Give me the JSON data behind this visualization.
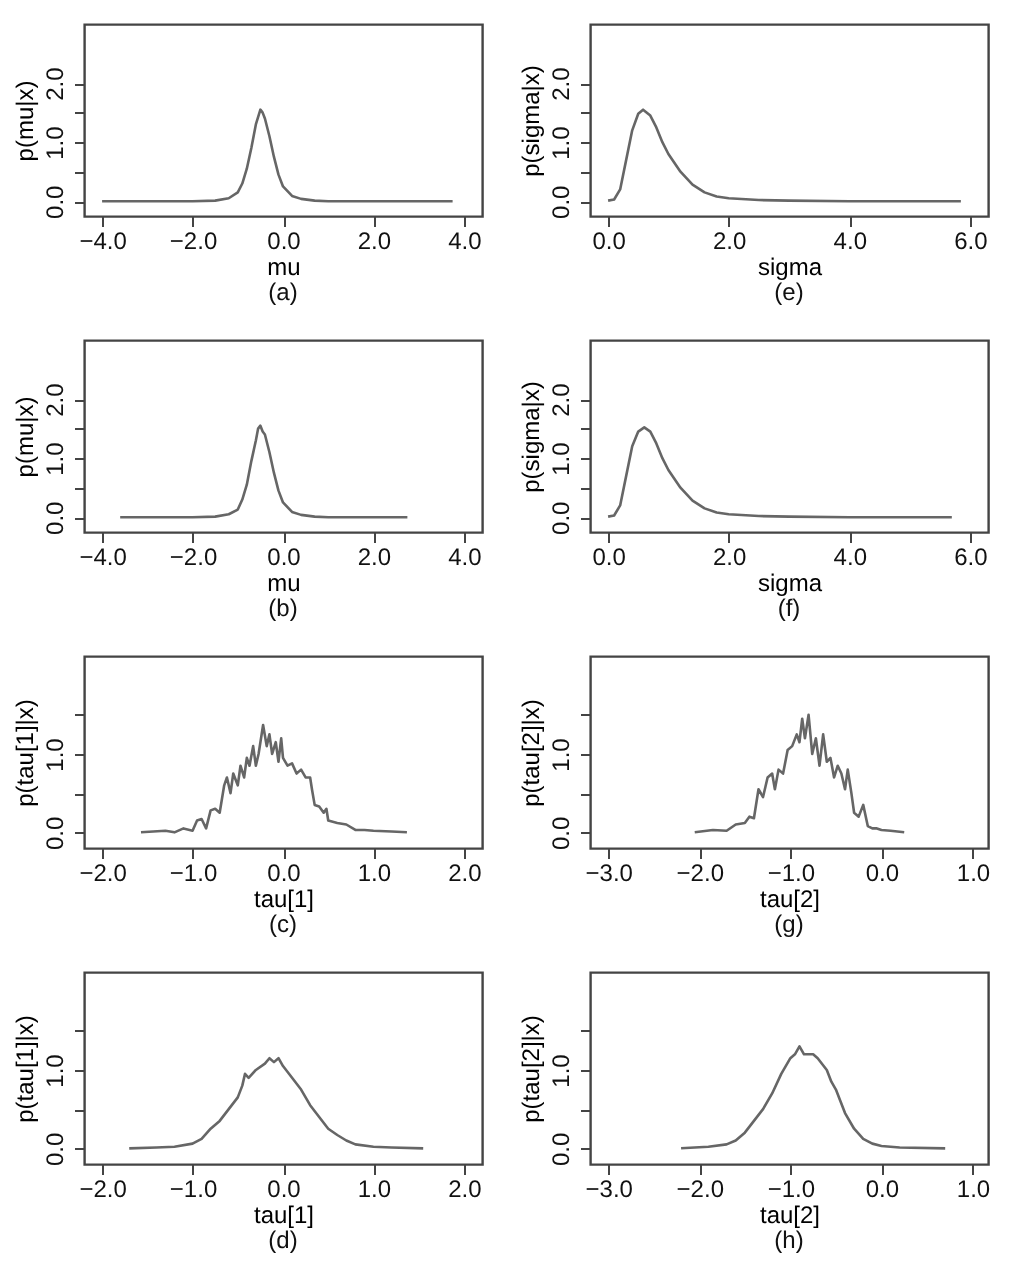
{
  "chart_data": [
    {
      "type": "line",
      "xlabel": "mu",
      "ylabel": "p(mu|x)",
      "annotations": [
        "(a)"
      ],
      "xlim": [
        -4.4,
        4.4
      ],
      "ylim": [
        -0.25,
        3.0
      ],
      "xticks": [
        {
          "value": -4,
          "label": "−4.0"
        },
        {
          "value": -2,
          "label": "−2.0"
        },
        {
          "value": 0,
          "label": "0.0"
        },
        {
          "value": 2,
          "label": "2.0"
        },
        {
          "value": 4,
          "label": "4.0"
        }
      ],
      "yticks": [
        {
          "value": 0,
          "label": "0.0"
        },
        {
          "value": 0.5,
          "label": null
        },
        {
          "value": 1,
          "label": "1.0"
        },
        {
          "value": 1.5,
          "label": null
        },
        {
          "value": 2,
          "label": "2.0"
        }
      ],
      "x": [
        -4.0,
        -3.0,
        -2.0,
        -1.5,
        -1.2,
        -1.0,
        -0.9,
        -0.8,
        -0.7,
        -0.6,
        -0.5,
        -0.45,
        -0.4,
        -0.3,
        -0.2,
        -0.1,
        0.0,
        0.2,
        0.4,
        0.7,
        1.0,
        2.0,
        3.75
      ],
      "series": [
        {
          "color": "#666666",
          "values": [
            0,
            0,
            0,
            0.01,
            0.05,
            0.15,
            0.3,
            0.55,
            0.9,
            1.3,
            1.55,
            1.5,
            1.4,
            1.1,
            0.75,
            0.45,
            0.25,
            0.09,
            0.04,
            0.01,
            0,
            0,
            0
          ]
        }
      ]
    },
    {
      "type": "line",
      "xlabel": "sigma",
      "ylabel": "p(sigma|x)",
      "annotations": [
        "(e)"
      ],
      "xlim": [
        -0.3,
        6.3
      ],
      "ylim": [
        -0.25,
        3.0
      ],
      "xticks": [
        {
          "value": 0,
          "label": "0.0"
        },
        {
          "value": 2,
          "label": "2.0"
        },
        {
          "value": 4,
          "label": "4.0"
        },
        {
          "value": 6,
          "label": "6.0"
        }
      ],
      "yticks": [
        {
          "value": 0,
          "label": "0.0"
        },
        {
          "value": 0.5,
          "label": null
        },
        {
          "value": 1,
          "label": "1.0"
        },
        {
          "value": 1.5,
          "label": null
        },
        {
          "value": 2,
          "label": "2.0"
        }
      ],
      "x": [
        0,
        0.1,
        0.2,
        0.3,
        0.4,
        0.5,
        0.58,
        0.7,
        0.8,
        0.9,
        1.0,
        1.2,
        1.4,
        1.6,
        1.8,
        2.0,
        2.5,
        3.0,
        4.0,
        5.85
      ],
      "series": [
        {
          "color": "#666666",
          "values": [
            0.01,
            0.03,
            0.2,
            0.7,
            1.2,
            1.48,
            1.55,
            1.45,
            1.25,
            1.0,
            0.8,
            0.5,
            0.28,
            0.15,
            0.08,
            0.05,
            0.02,
            0.01,
            0,
            0
          ]
        }
      ]
    },
    {
      "type": "line",
      "xlabel": "mu",
      "ylabel": "p(mu|x)",
      "annotations": [
        "(b)"
      ],
      "xlim": [
        -4.4,
        4.4
      ],
      "ylim": [
        -0.25,
        3.0
      ],
      "xticks": [
        {
          "value": -4,
          "label": "−4.0"
        },
        {
          "value": -2,
          "label": "−2.0"
        },
        {
          "value": 0,
          "label": "0.0"
        },
        {
          "value": 2,
          "label": "2.0"
        },
        {
          "value": 4,
          "label": "4.0"
        }
      ],
      "yticks": [
        {
          "value": 0,
          "label": "0.0"
        },
        {
          "value": 0.5,
          "label": null
        },
        {
          "value": 1,
          "label": "1.0"
        },
        {
          "value": 1.5,
          "label": null
        },
        {
          "value": 2,
          "label": "2.0"
        }
      ],
      "x": [
        -3.6,
        -2.0,
        -1.5,
        -1.2,
        -1.0,
        -0.9,
        -0.8,
        -0.7,
        -0.6,
        -0.55,
        -0.5,
        -0.45,
        -0.4,
        -0.3,
        -0.2,
        -0.1,
        0.0,
        0.2,
        0.4,
        0.7,
        1.0,
        2.0,
        2.75
      ],
      "series": [
        {
          "color": "#666666",
          "values": [
            0,
            0,
            0.01,
            0.05,
            0.13,
            0.3,
            0.55,
            0.95,
            1.3,
            1.5,
            1.55,
            1.45,
            1.4,
            1.1,
            0.75,
            0.45,
            0.25,
            0.09,
            0.04,
            0.01,
            0,
            0,
            0
          ]
        }
      ]
    },
    {
      "type": "line",
      "xlabel": "sigma",
      "ylabel": "p(sigma|x)",
      "annotations": [
        "(f)"
      ],
      "xlim": [
        -0.3,
        6.3
      ],
      "ylim": [
        -0.25,
        3.0
      ],
      "xticks": [
        {
          "value": 0,
          "label": "0.0"
        },
        {
          "value": 2,
          "label": "2.0"
        },
        {
          "value": 4,
          "label": "4.0"
        },
        {
          "value": 6,
          "label": "6.0"
        }
      ],
      "yticks": [
        {
          "value": 0,
          "label": "0.0"
        },
        {
          "value": 0.5,
          "label": null
        },
        {
          "value": 1,
          "label": "1.0"
        },
        {
          "value": 1.5,
          "label": null
        },
        {
          "value": 2,
          "label": "2.0"
        }
      ],
      "x": [
        0,
        0.1,
        0.2,
        0.3,
        0.4,
        0.5,
        0.6,
        0.7,
        0.8,
        0.9,
        1.0,
        1.2,
        1.4,
        1.6,
        1.8,
        2.0,
        2.5,
        3.0,
        4.0,
        5.7
      ],
      "series": [
        {
          "color": "#666666",
          "values": [
            0.01,
            0.03,
            0.2,
            0.7,
            1.2,
            1.45,
            1.52,
            1.45,
            1.25,
            1.0,
            0.8,
            0.5,
            0.28,
            0.15,
            0.08,
            0.05,
            0.02,
            0.01,
            0,
            0
          ]
        }
      ]
    },
    {
      "type": "line",
      "xlabel": "tau[1]",
      "ylabel": "p(tau[1]|x)",
      "annotations": [
        "(c)"
      ],
      "xlim": [
        -2.2,
        2.2
      ],
      "ylim": [
        -0.2,
        2.25
      ],
      "xticks": [
        {
          "value": -2,
          "label": "−2.0"
        },
        {
          "value": -1,
          "label": "−1.0"
        },
        {
          "value": 0,
          "label": "0.0"
        },
        {
          "value": 1,
          "label": "1.0"
        },
        {
          "value": 2,
          "label": "2.0"
        }
      ],
      "yticks": [
        {
          "value": 0,
          "label": "0.0"
        },
        {
          "value": 0.5,
          "label": null
        },
        {
          "value": 1,
          "label": "1.0"
        },
        {
          "value": 1.5,
          "label": null
        }
      ],
      "x": [
        -1.57,
        -1.3,
        -1.2,
        -1.1,
        -1.0,
        -0.95,
        -0.9,
        -0.85,
        -0.8,
        -0.75,
        -0.7,
        -0.65,
        -0.62,
        -0.58,
        -0.55,
        -0.5,
        -0.47,
        -0.43,
        -0.4,
        -0.37,
        -0.33,
        -0.3,
        -0.27,
        -0.22,
        -0.18,
        -0.15,
        -0.12,
        -0.08,
        -0.05,
        -0.02,
        0.0,
        0.05,
        0.1,
        0.15,
        0.2,
        0.25,
        0.3,
        0.32,
        0.35,
        0.4,
        0.45,
        0.48,
        0.5,
        0.6,
        0.7,
        0.8,
        0.9,
        1.0,
        1.2,
        1.37
      ],
      "series": [
        {
          "color": "#666666",
          "values": [
            0,
            0.02,
            0,
            0.05,
            0.02,
            0.15,
            0.17,
            0.05,
            0.28,
            0.3,
            0.25,
            0.6,
            0.7,
            0.5,
            0.75,
            0.6,
            0.85,
            0.7,
            0.95,
            0.85,
            1.1,
            0.85,
            1.0,
            1.37,
            1.1,
            1.25,
            1.0,
            1.15,
            0.9,
            1.2,
            0.95,
            0.85,
            0.88,
            0.75,
            0.8,
            0.7,
            0.7,
            0.55,
            0.35,
            0.33,
            0.25,
            0.3,
            0.15,
            0.12,
            0.1,
            0.03,
            0.03,
            0.02,
            0.01,
            0
          ]
        }
      ]
    },
    {
      "type": "line",
      "xlabel": "tau[2]",
      "ylabel": "p(tau[2]|x)",
      "annotations": [
        "(g)"
      ],
      "xlim": [
        -3.2,
        1.17
      ],
      "ylim": [
        -0.2,
        2.25
      ],
      "xticks": [
        {
          "value": -3,
          "label": "−3.0"
        },
        {
          "value": -2,
          "label": "−2.0"
        },
        {
          "value": -1,
          "label": "−1.0"
        },
        {
          "value": 0,
          "label": "0.0"
        },
        {
          "value": 1,
          "label": "1.0"
        }
      ],
      "yticks": [
        {
          "value": 0,
          "label": "0.0"
        },
        {
          "value": 0.5,
          "label": null
        },
        {
          "value": 1,
          "label": "1.0"
        },
        {
          "value": 1.5,
          "label": null
        }
      ],
      "x": [
        -2.05,
        -1.85,
        -1.7,
        -1.6,
        -1.5,
        -1.45,
        -1.4,
        -1.35,
        -1.3,
        -1.25,
        -1.2,
        -1.17,
        -1.13,
        -1.08,
        -1.03,
        -0.98,
        -0.93,
        -0.9,
        -0.87,
        -0.84,
        -0.8,
        -0.76,
        -0.72,
        -0.68,
        -0.64,
        -0.6,
        -0.56,
        -0.52,
        -0.48,
        -0.44,
        -0.4,
        -0.37,
        -0.33,
        -0.3,
        -0.25,
        -0.2,
        -0.15,
        -0.1,
        -0.05,
        0.0,
        0.1,
        0.25
      ],
      "series": [
        {
          "color": "#666666",
          "values": [
            0,
            0.03,
            0.02,
            0.1,
            0.12,
            0.2,
            0.18,
            0.55,
            0.45,
            0.7,
            0.75,
            0.55,
            0.8,
            0.75,
            1.05,
            1.1,
            1.25,
            1.15,
            1.45,
            1.2,
            1.5,
            1.0,
            1.2,
            0.85,
            1.25,
            0.9,
            0.95,
            0.7,
            0.85,
            0.75,
            0.55,
            0.8,
            0.5,
            0.25,
            0.2,
            0.35,
            0.08,
            0.05,
            0.05,
            0.03,
            0.02,
            0
          ]
        }
      ]
    },
    {
      "type": "line",
      "xlabel": "tau[1]",
      "ylabel": "p(tau[1]|x)",
      "annotations": [
        "(d)"
      ],
      "xlim": [
        -2.2,
        2.2
      ],
      "ylim": [
        -0.2,
        2.25
      ],
      "xticks": [
        {
          "value": -2,
          "label": "−2.0"
        },
        {
          "value": -1,
          "label": "−1.0"
        },
        {
          "value": 0,
          "label": "0.0"
        },
        {
          "value": 1,
          "label": "1.0"
        },
        {
          "value": 2,
          "label": "2.0"
        }
      ],
      "yticks": [
        {
          "value": 0,
          "label": "0.0"
        },
        {
          "value": 0.5,
          "label": null
        },
        {
          "value": 1,
          "label": "1.0"
        },
        {
          "value": 1.5,
          "label": null
        }
      ],
      "x": [
        -1.7,
        -1.4,
        -1.2,
        -1.0,
        -0.9,
        -0.8,
        -0.7,
        -0.6,
        -0.5,
        -0.45,
        -0.42,
        -0.38,
        -0.3,
        -0.2,
        -0.15,
        -0.1,
        -0.05,
        0.0,
        0.1,
        0.2,
        0.3,
        0.4,
        0.5,
        0.6,
        0.7,
        0.8,
        1.0,
        1.2,
        1.55
      ],
      "series": [
        {
          "color": "#666666",
          "values": [
            0,
            0.01,
            0.02,
            0.06,
            0.12,
            0.25,
            0.35,
            0.5,
            0.65,
            0.8,
            0.95,
            0.9,
            1.0,
            1.08,
            1.15,
            1.1,
            1.15,
            1.05,
            0.9,
            0.75,
            0.55,
            0.4,
            0.25,
            0.17,
            0.1,
            0.05,
            0.02,
            0.01,
            0
          ]
        }
      ]
    },
    {
      "type": "line",
      "xlabel": "tau[2]",
      "ylabel": "p(tau[2]|x)",
      "annotations": [
        "(h)"
      ],
      "xlim": [
        -3.2,
        1.17
      ],
      "ylim": [
        -0.2,
        2.25
      ],
      "xticks": [
        {
          "value": -3,
          "label": "−3.0"
        },
        {
          "value": -2,
          "label": "−2.0"
        },
        {
          "value": -1,
          "label": "−1.0"
        },
        {
          "value": 0,
          "label": "0.0"
        },
        {
          "value": 1,
          "label": "1.0"
        }
      ],
      "yticks": [
        {
          "value": 0,
          "label": "0.0"
        },
        {
          "value": 0.5,
          "label": null
        },
        {
          "value": 1,
          "label": "1.0"
        },
        {
          "value": 1.5,
          "label": null
        }
      ],
      "x": [
        -2.2,
        -1.9,
        -1.7,
        -1.6,
        -1.5,
        -1.4,
        -1.3,
        -1.2,
        -1.1,
        -1.0,
        -0.95,
        -0.9,
        -0.85,
        -0.8,
        -0.75,
        -0.7,
        -0.6,
        -0.55,
        -0.5,
        -0.45,
        -0.4,
        -0.3,
        -0.2,
        -0.1,
        0.0,
        0.2,
        0.7
      ],
      "series": [
        {
          "color": "#666666",
          "values": [
            0,
            0.02,
            0.05,
            0.1,
            0.2,
            0.35,
            0.5,
            0.7,
            0.95,
            1.15,
            1.2,
            1.3,
            1.2,
            1.2,
            1.2,
            1.15,
            1.0,
            0.85,
            0.75,
            0.6,
            0.45,
            0.25,
            0.12,
            0.06,
            0.03,
            0.01,
            0
          ]
        }
      ]
    }
  ]
}
